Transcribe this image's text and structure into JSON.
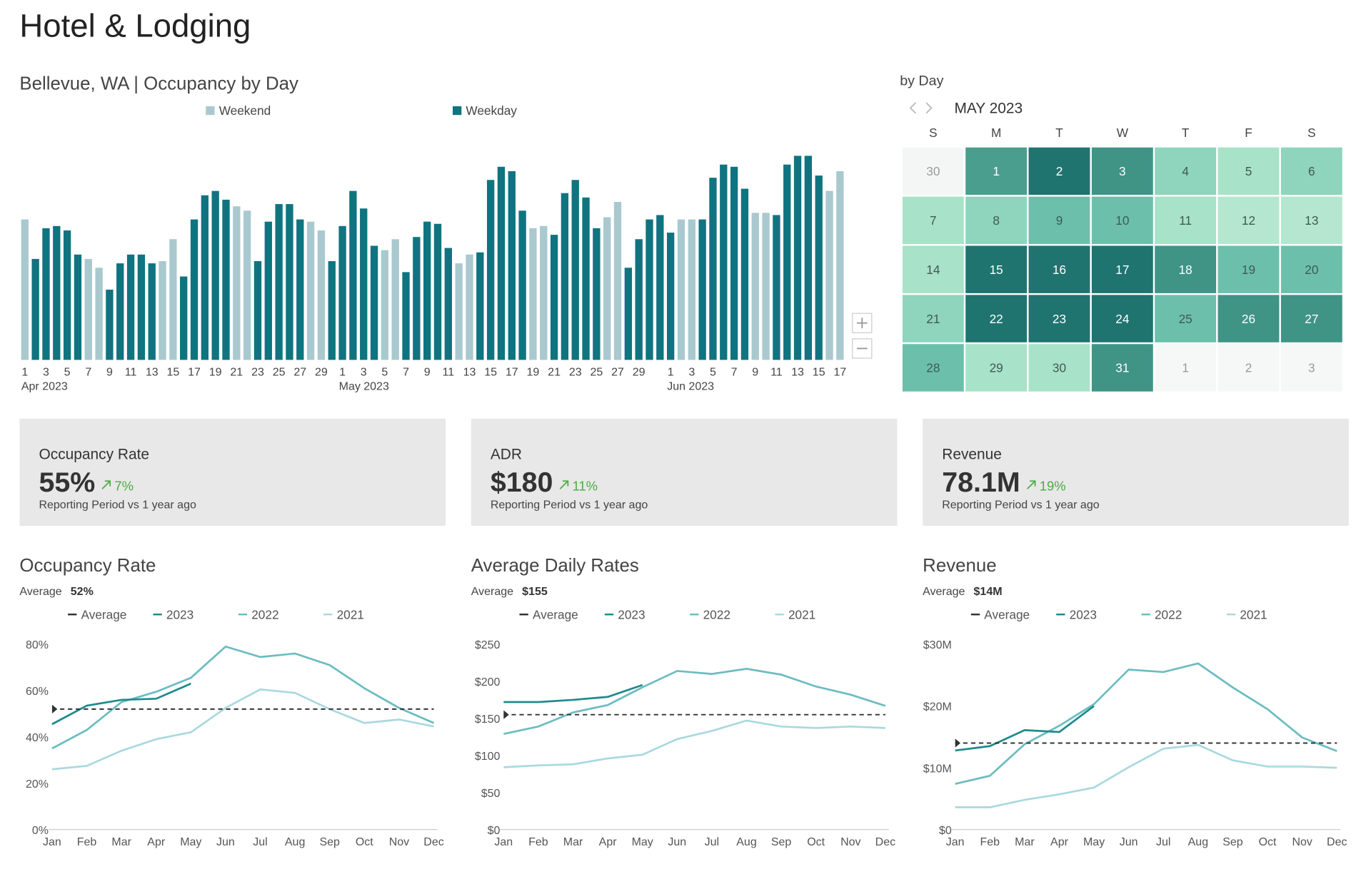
{
  "title": "Hotel & Lodging",
  "chart_data": [
    {
      "type": "bar",
      "title": "Bellevue, WA | Occupancy by Day",
      "ylim": [
        0,
        100
      ],
      "categories": [
        "1",
        null,
        "3",
        null,
        "5",
        null,
        "7",
        null,
        "9",
        null,
        "11",
        null,
        "13",
        null,
        "15",
        null,
        "17",
        null,
        "19",
        null,
        "21",
        null,
        "23",
        null,
        "25",
        null,
        "27",
        null,
        "29",
        null,
        "1",
        null,
        "3",
        null,
        "5",
        null,
        "7",
        null,
        "9",
        null,
        "11",
        null,
        "13",
        null,
        "15",
        null,
        "17",
        null,
        "19",
        null,
        "21",
        null,
        "23",
        null,
        "25",
        null,
        "27",
        null,
        "29",
        null,
        null,
        "1",
        null,
        "3",
        null,
        "5",
        null,
        "7",
        null,
        "9",
        null,
        "11",
        null,
        "13",
        null,
        "15",
        null,
        "17"
      ],
      "months": [
        {
          "label": "Apr 2023",
          "start": 0
        },
        {
          "label": "May 2023",
          "start": 30
        },
        {
          "label": "Jun 2023",
          "start": 61
        }
      ],
      "series": [
        {
          "name": "Weekend",
          "color": "#a9c9cf",
          "values": [
            64,
            null,
            null,
            null,
            null,
            null,
            46,
            42,
            null,
            null,
            null,
            null,
            null,
            45,
            55,
            null,
            null,
            null,
            null,
            null,
            70,
            68,
            null,
            null,
            null,
            null,
            null,
            63,
            59,
            null,
            null,
            null,
            null,
            null,
            50,
            55,
            null,
            null,
            null,
            null,
            null,
            44,
            48,
            null,
            null,
            null,
            null,
            null,
            60,
            61,
            null,
            null,
            null,
            null,
            null,
            65,
            72,
            null,
            null,
            null,
            null,
            null,
            64,
            64,
            null,
            null,
            null,
            null,
            null,
            67,
            67,
            null,
            null,
            null,
            null,
            null,
            77,
            86
          ]
        },
        {
          "name": "Weekday",
          "color": "#0f7480",
          "values": [
            null,
            46,
            60,
            61,
            59,
            48,
            null,
            null,
            32,
            44,
            48,
            48,
            44,
            null,
            null,
            38,
            64,
            75,
            77,
            73,
            null,
            null,
            45,
            63,
            71,
            71,
            64,
            null,
            null,
            45,
            61,
            77,
            69,
            52,
            null,
            null,
            40,
            56,
            63,
            62,
            51,
            null,
            null,
            49,
            82,
            88,
            86,
            68,
            null,
            null,
            57,
            76,
            82,
            74,
            60,
            null,
            null,
            42,
            55,
            64,
            66,
            58,
            null,
            null,
            64,
            83,
            89,
            88,
            78,
            null,
            null,
            66,
            89,
            93,
            93,
            84,
            null,
            null
          ]
        }
      ]
    },
    {
      "type": "line",
      "title": "Occupancy Rate",
      "average": {
        "name": "Average",
        "value": 52,
        "label": "52%",
        "color": "#333333"
      },
      "categories": [
        "Jan",
        "Feb",
        "Mar",
        "Apr",
        "May",
        "Jun",
        "Jul",
        "Aug",
        "Sep",
        "Oct",
        "Nov",
        "Dec"
      ],
      "ylim": [
        0,
        80
      ],
      "yticks": [
        {
          "value": 0,
          "label": "0%"
        },
        {
          "value": 20,
          "label": "20%"
        },
        {
          "value": 40,
          "label": "40%"
        },
        {
          "value": 60,
          "label": "60%"
        },
        {
          "value": 80,
          "label": "80%"
        }
      ],
      "grid": false,
      "series": [
        {
          "name": "2023",
          "color": "#1f8a8c",
          "values": [
            45.5,
            53.5,
            56,
            56.5,
            63,
            null,
            null,
            null,
            null,
            null,
            null,
            null
          ]
        },
        {
          "name": "2022",
          "color": "#6bbcc1",
          "values": [
            35,
            43,
            55,
            59.5,
            65.5,
            79,
            74.5,
            76,
            71,
            61,
            52.5,
            46
          ]
        },
        {
          "name": "2021",
          "color": "#a9d9df",
          "values": [
            26,
            27.5,
            34,
            39,
            42,
            52.5,
            60.5,
            59,
            52,
            46,
            47.5,
            44.5
          ]
        }
      ]
    },
    {
      "type": "line",
      "title": "Average Daily Rates",
      "average": {
        "name": "Average",
        "value": 155,
        "label": "$155",
        "color": "#333333"
      },
      "categories": [
        "Jan",
        "Feb",
        "Mar",
        "Apr",
        "May",
        "Jun",
        "Jul",
        "Aug",
        "Sep",
        "Oct",
        "Nov",
        "Dec"
      ],
      "ylim": [
        0,
        250
      ],
      "yticks": [
        {
          "value": 0,
          "label": "$0"
        },
        {
          "value": 50,
          "label": "$50"
        },
        {
          "value": 100,
          "label": "$100"
        },
        {
          "value": 150,
          "label": "$150"
        },
        {
          "value": 200,
          "label": "$200"
        },
        {
          "value": 250,
          "label": "$250"
        }
      ],
      "grid": false,
      "series": [
        {
          "name": "2023",
          "color": "#1f8a8c",
          "values": [
            172,
            172,
            175,
            179,
            195,
            null,
            null,
            null,
            null,
            null,
            null,
            null
          ]
        },
        {
          "name": "2022",
          "color": "#6bbcc1",
          "values": [
            129,
            139,
            158,
            168,
            192,
            214,
            210,
            217,
            209,
            193,
            182,
            167
          ]
        },
        {
          "name": "2021",
          "color": "#a9d9df",
          "values": [
            84,
            86.5,
            88,
            96,
            101,
            122,
            133,
            147,
            139,
            137,
            139,
            137
          ]
        }
      ]
    },
    {
      "type": "line",
      "title": "Revenue",
      "average": {
        "name": "Average",
        "value": 14,
        "label": "$14M",
        "color": "#333333"
      },
      "categories": [
        "Jan",
        "Feb",
        "Mar",
        "Apr",
        "May",
        "Jun",
        "Jul",
        "Aug",
        "Sep",
        "Oct",
        "Nov",
        "Dec"
      ],
      "ylim": [
        0,
        30
      ],
      "yticks": [
        {
          "value": 0,
          "label": "$0"
        },
        {
          "value": 10,
          "label": "$10M"
        },
        {
          "value": 20,
          "label": "$20M"
        },
        {
          "value": 30,
          "label": "$30M"
        }
      ],
      "grid": false,
      "series": [
        {
          "name": "2023",
          "color": "#1f8a8c",
          "values": [
            12.8,
            13.5,
            16.1,
            15.8,
            20,
            null,
            null,
            null,
            null,
            null,
            null,
            null
          ]
        },
        {
          "name": "2022",
          "color": "#6bbcc1",
          "values": [
            7.4,
            8.7,
            13.8,
            16.8,
            20.3,
            25.9,
            25.5,
            26.9,
            23,
            19.5,
            14.9,
            12.7
          ]
        },
        {
          "name": "2021",
          "color": "#a9d9df",
          "values": [
            3.6,
            3.6,
            4.8,
            5.7,
            6.8,
            10.1,
            13.1,
            13.7,
            11.2,
            10.2,
            10.2,
            10
          ]
        }
      ]
    }
  ],
  "calendar": {
    "title": "by Day",
    "month": "MAY 2023",
    "weekdays": [
      "S",
      "M",
      "T",
      "W",
      "T",
      "F",
      "S"
    ],
    "weeks": [
      [
        {
          "day": 30,
          "color": "#f4f6f6"
        },
        {
          "day": 1,
          "color": "#4a9e8e"
        },
        {
          "day": 2,
          "color": "#1f7470"
        },
        {
          "day": 3,
          "color": "#3f9486"
        },
        {
          "day": 4,
          "color": "#8fd4bd"
        },
        {
          "day": 5,
          "color": "#a8e2c9"
        },
        {
          "day": 6,
          "color": "#8fd4bd"
        }
      ],
      [
        {
          "day": 7,
          "color": "#a8e2c9"
        },
        {
          "day": 8,
          "color": "#8fd4bd"
        },
        {
          "day": 9,
          "color": "#6cc0ab"
        },
        {
          "day": 10,
          "color": "#6cc0ab"
        },
        {
          "day": 11,
          "color": "#a8e2c9"
        },
        {
          "day": 12,
          "color": "#b5e7d0"
        },
        {
          "day": 13,
          "color": "#b5e7d0"
        }
      ],
      [
        {
          "day": 14,
          "color": "#a8e2c9"
        },
        {
          "day": 15,
          "color": "#1f7470"
        },
        {
          "day": 16,
          "color": "#1f7470"
        },
        {
          "day": 17,
          "color": "#1f7470"
        },
        {
          "day": 18,
          "color": "#3f9486"
        },
        {
          "day": 19,
          "color": "#6cc0ab"
        },
        {
          "day": 20,
          "color": "#6cc0ab"
        }
      ],
      [
        {
          "day": 21,
          "color": "#8fd4bd"
        },
        {
          "day": 22,
          "color": "#1f7470"
        },
        {
          "day": 23,
          "color": "#1f7470"
        },
        {
          "day": 24,
          "color": "#1f7470"
        },
        {
          "day": 25,
          "color": "#6cc0ab"
        },
        {
          "day": 26,
          "color": "#3f9486"
        },
        {
          "day": 27,
          "color": "#3f9486"
        }
      ],
      [
        {
          "day": 28,
          "color": "#6cc0ab"
        },
        {
          "day": 29,
          "color": "#a8e2c9"
        },
        {
          "day": 30,
          "color": "#a8e2c9"
        },
        {
          "day": 31,
          "color": "#3f9486"
        },
        {
          "day": 1,
          "color": "#f6f7f7"
        },
        {
          "day": 2,
          "color": "#f6f7f7"
        },
        {
          "day": 3,
          "color": "#f6f7f7"
        }
      ]
    ]
  },
  "kpis": [
    {
      "label": "Occupancy Rate",
      "value": "55%",
      "change": "7%",
      "note": "Reporting Period vs 1 year ago"
    },
    {
      "label": "ADR",
      "value": "$180",
      "change": "11%",
      "note": "Reporting Period vs 1 year ago"
    },
    {
      "label": "Revenue",
      "value": "78.1M",
      "change": "19%",
      "note": "Reporting Period vs 1 year ago"
    }
  ]
}
